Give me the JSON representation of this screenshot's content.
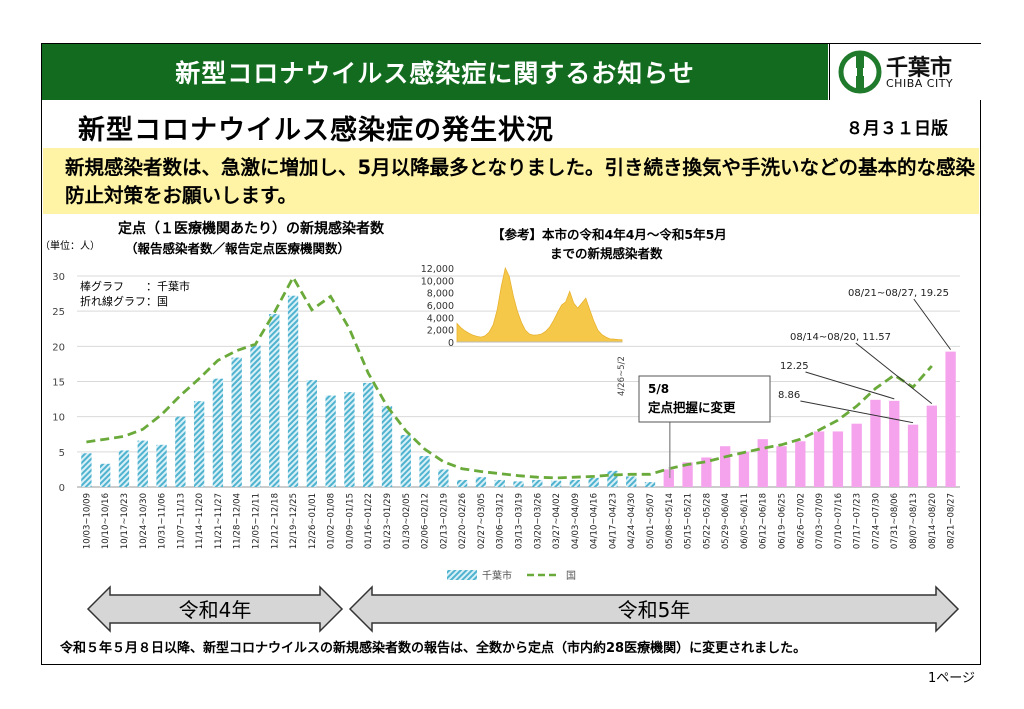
{
  "banner": {
    "title": "新型コロナウイルス感染症に関するお知らせ"
  },
  "logo": {
    "name": "千葉市",
    "sub": "CHIBA CITY"
  },
  "heading": {
    "title": "新型コロナウイルス感染症の発生状況",
    "edition": "８月３１日版"
  },
  "notice": {
    "text": "新規感染者数は、急激に増加し、5月以降最多となりました。引き続き換気や手洗いなどの基本的な感染防止対策をお願いします。"
  },
  "colors": {
    "banner": "#126b1f",
    "notice_bg": "#fff3a6",
    "bar_chiba": "#4fb3cf",
    "bar_pink": "#f5a3ec",
    "line_national": "#6aaa3a",
    "inset_fill": "#f6c84a"
  },
  "chart_data": [
    {
      "type": "bar",
      "title": "定点（１医療機関あたり）の新規感染者数",
      "subtitle": "（報告感染者数／報告定点医療機関数）",
      "unit_label": "（単位：人）",
      "type_note": [
        "棒グラフ　　：千葉市",
        "折れ線グラフ：国"
      ],
      "ylim": [
        0,
        30
      ],
      "yticks": [
        0,
        5,
        10,
        15,
        20,
        25,
        30
      ],
      "categories": [
        "10/03~10/09",
        "10/10~10/16",
        "10/17~10/23",
        "10/24~10/30",
        "10/31~11/06",
        "11/07~11/13",
        "11/14~11/20",
        "11/21~11/27",
        "11/28~12/04",
        "12/05~12/11",
        "12/12~12/18",
        "12/19~12/25",
        "12/26~01/01",
        "01/02~01/08",
        "01/09~01/15",
        "01/16~01/22",
        "01/23~01/29",
        "01/30~02/05",
        "02/06~02/12",
        "02/13~02/19",
        "02/20~02/26",
        "02/27~03/05",
        "03/06~03/12",
        "03/13~03/19",
        "03/20~03/26",
        "03/27~04/02",
        "04/03~04/09",
        "04/10~04/16",
        "04/17~04/23",
        "04/24~04/30",
        "05/01~05/07",
        "05/08~05/14",
        "05/15~05/21",
        "05/22~05/28",
        "05/29~06/04",
        "06/05~06/11",
        "06/12~06/18",
        "06/19~06/25",
        "06/26~07/02",
        "07/03~07/09",
        "07/10~07/16",
        "07/17~07/23",
        "07/24~07/30",
        "07/31~08/06",
        "08/07~08/13",
        "08/14~08/20",
        "08/21~08/27"
      ],
      "series": [
        {
          "name": "千葉市",
          "values": [
            4.8,
            3.3,
            5.2,
            6.6,
            6.0,
            10.0,
            12.2,
            15.4,
            18.4,
            20.1,
            24.6,
            27.2,
            15.2,
            13.0,
            13.5,
            14.8,
            11.5,
            7.4,
            4.4,
            2.5,
            1.0,
            1.4,
            1.0,
            0.8,
            1.0,
            0.9,
            1.0,
            1.3,
            2.3,
            1.5,
            0.7,
            2.5,
            3.5,
            4.2,
            5.8,
            5.0,
            6.8,
            5.8,
            6.5,
            7.9,
            7.9,
            9.0,
            12.4,
            12.25,
            8.86,
            11.57,
            19.25
          ]
        },
        {
          "name": "国",
          "values": [
            6.4,
            6.8,
            7.2,
            8.2,
            10.3,
            13.0,
            15.4,
            18.0,
            19.4,
            20.3,
            24.8,
            29.8,
            25.2,
            27.1,
            22.5,
            16.2,
            11.5,
            8.0,
            5.4,
            3.6,
            2.6,
            2.2,
            1.9,
            1.6,
            1.4,
            1.3,
            1.4,
            1.5,
            1.7,
            1.8,
            1.8,
            2.6,
            3.2,
            3.6,
            4.3,
            4.9,
            5.5,
            6.0,
            6.8,
            8.1,
            9.5,
            11.5,
            14.0,
            15.9,
            14.2,
            17.2,
            null
          ]
        }
      ],
      "legend": [
        "千葉市",
        "国"
      ],
      "annotations": [
        {
          "label": "12.25",
          "index": 43
        },
        {
          "label": "8.86",
          "index": 44
        },
        {
          "label": "08/14~08/20, 11.57",
          "index": 45
        },
        {
          "label": "08/21~08/27, 19.25",
          "index": 46
        }
      ],
      "change_note": {
        "title": "5/8",
        "text": "定点把握に変更"
      },
      "periods": [
        {
          "label": "令和4年"
        },
        {
          "label": "令和5年"
        }
      ]
    },
    {
      "type": "area",
      "title": "【参考】本市の令和4年4月～令和5年5月",
      "subtitle": "までの新規感染者数",
      "yticks": [
        0,
        2000,
        4000,
        6000,
        8000,
        10000,
        12000
      ],
      "ytick_labels": [
        "0",
        "2,000",
        "4,000",
        "6,000",
        "8,000",
        "10,000",
        "12,000"
      ],
      "ylim": [
        0,
        12000
      ],
      "end_label": "4/26~5/2",
      "values": [
        3000,
        2300,
        1800,
        1400,
        1100,
        900,
        800,
        1000,
        1600,
        2800,
        5200,
        9000,
        12000,
        10600,
        7500,
        5000,
        3200,
        1900,
        1300,
        1100,
        1150,
        1300,
        1700,
        2400,
        3500,
        4800,
        6000,
        6500,
        8200,
        6300,
        5500,
        6300,
        7100,
        5200,
        3400,
        1900,
        1200,
        800,
        500,
        450,
        400,
        380
      ]
    }
  ],
  "footer": {
    "note": "令和５年５月８日以降、新型コロナウイルスの新規感染者数の報告は、全数から定点（市内約28医療機関）に変更されました。",
    "page": "1ページ"
  }
}
